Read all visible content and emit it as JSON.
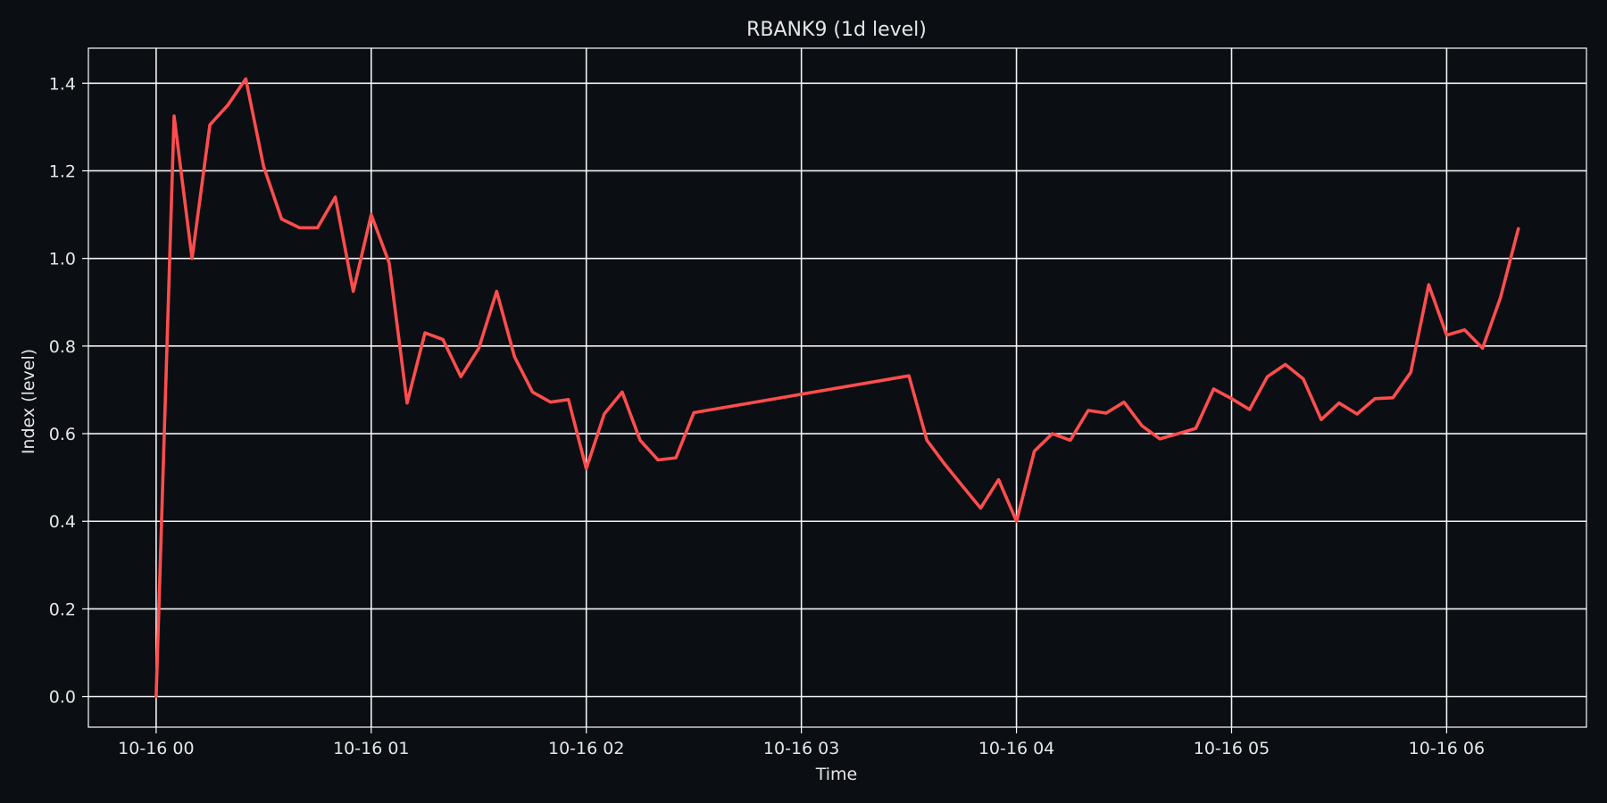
{
  "chart_data": {
    "type": "line",
    "title": "RBANK9 (1d level)",
    "xlabel": "Time",
    "ylabel": "Index (level)",
    "xlim_hours": [
      -0.315,
      6.65
    ],
    "ylim": [
      -0.07,
      1.48
    ],
    "grid": true,
    "x_ticks": [
      {
        "label": "10-16 00",
        "hour": 0
      },
      {
        "label": "10-16 01",
        "hour": 1
      },
      {
        "label": "10-16 02",
        "hour": 2
      },
      {
        "label": "10-16 03",
        "hour": 3
      },
      {
        "label": "10-16 04",
        "hour": 4
      },
      {
        "label": "10-16 05",
        "hour": 5
      },
      {
        "label": "10-16 06",
        "hour": 6
      }
    ],
    "y_ticks": [
      0.0,
      0.2,
      0.4,
      0.6,
      0.8,
      1.0,
      1.2,
      1.4
    ],
    "y_tick_labels": [
      "0.0",
      "0.2",
      "0.4",
      "0.6",
      "0.8",
      "1.0",
      "1.2",
      "1.4"
    ],
    "colors": {
      "background": "#0b0e13",
      "series": "#ff4d4d",
      "grid": "#ffffff",
      "text": "#e6e6e6"
    },
    "series": [
      {
        "x": [
          0.0,
          0.0833,
          0.1667,
          0.25,
          0.3333,
          0.4167,
          0.5,
          0.5833,
          0.6667,
          0.75,
          0.8333,
          0.9167,
          1.0,
          1.0833,
          1.1667,
          1.25,
          1.3333,
          1.4167,
          1.5,
          1.5833,
          1.6667,
          1.75,
          1.8333,
          1.9167,
          2.0,
          2.0833,
          2.1667,
          2.25,
          2.3333,
          2.4167,
          2.5,
          3.5,
          3.5833,
          3.6667,
          3.75,
          3.8333,
          3.9167,
          4.0,
          4.0833,
          4.1667,
          4.25,
          4.3333,
          4.4167,
          4.5,
          4.5833,
          4.6667,
          4.75,
          4.8333,
          4.9167,
          5.0,
          5.0833,
          5.1667,
          5.25,
          5.3333,
          5.4167,
          5.5,
          5.5833,
          5.6667,
          5.75,
          5.8333,
          5.9167,
          6.0,
          6.0833,
          6.1667,
          6.25,
          6.3333
        ],
        "y": [
          0.0,
          1.325,
          1.0,
          1.305,
          1.35,
          1.41,
          1.21,
          1.09,
          1.07,
          1.07,
          1.14,
          0.925,
          1.1,
          0.99,
          0.67,
          0.83,
          0.815,
          0.73,
          0.795,
          0.925,
          0.775,
          0.695,
          0.672,
          0.678,
          0.52,
          0.645,
          0.695,
          0.585,
          0.54,
          0.545,
          0.648,
          0.732,
          0.585,
          0.53,
          0.48,
          0.43,
          0.495,
          0.4,
          0.56,
          0.6,
          0.585,
          0.653,
          0.647,
          0.672,
          0.618,
          0.588,
          0.6,
          0.612,
          0.702,
          0.68,
          0.655,
          0.73,
          0.758,
          0.725,
          0.632,
          0.67,
          0.645,
          0.68,
          0.682,
          0.74,
          0.94,
          0.825,
          0.837,
          0.795,
          0.91,
          1.068
        ]
      }
    ]
  }
}
